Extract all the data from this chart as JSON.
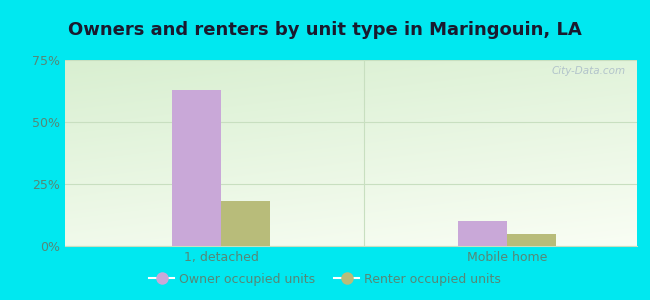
{
  "title": "Owners and renters by unit type in Maringouin, LA",
  "categories": [
    "1, detached",
    "Mobile home"
  ],
  "owner_values": [
    63,
    10
  ],
  "renter_values": [
    18,
    5
  ],
  "owner_color": "#c9a8d8",
  "renter_color": "#b8bc7a",
  "ylim": [
    0,
    75
  ],
  "yticks": [
    0,
    25,
    50,
    75
  ],
  "ytick_labels": [
    "0%",
    "25%",
    "50%",
    "75%"
  ],
  "background_outer": "#00e8f0",
  "bg_color_topleft": "#d8efd0",
  "bg_color_topright": "#e8f8f0",
  "bg_color_bottom": "#f0faf0",
  "grid_color": "#c8dfc0",
  "bar_width": 0.38,
  "group_positions": [
    1.0,
    3.2
  ],
  "legend_labels": [
    "Owner occupied units",
    "Renter occupied units"
  ],
  "watermark": "City-Data.com",
  "title_fontsize": 13,
  "axis_tick_fontsize": 9,
  "legend_fontsize": 9,
  "tick_color": "#558877",
  "title_color": "#1a1a2e"
}
